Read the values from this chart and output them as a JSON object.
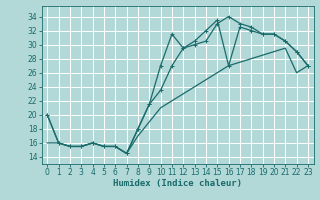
{
  "xlabel": "Humidex (Indice chaleur)",
  "bg_color": "#b2d8d8",
  "grid_color": "#ffffff",
  "line_color": "#1a6b6b",
  "xlim": [
    -0.5,
    23.5
  ],
  "ylim": [
    13.0,
    35.5
  ],
  "xticks": [
    0,
    1,
    2,
    3,
    4,
    5,
    6,
    7,
    8,
    9,
    10,
    11,
    12,
    13,
    14,
    15,
    16,
    17,
    18,
    19,
    20,
    21,
    22,
    23
  ],
  "yticks": [
    14,
    16,
    18,
    20,
    22,
    24,
    26,
    28,
    30,
    32,
    34
  ],
  "line1_x": [
    0,
    1,
    2,
    3,
    4,
    5,
    6,
    7,
    8,
    9,
    10,
    11,
    12,
    13,
    14,
    15,
    16,
    17,
    18,
    19,
    20,
    21,
    22,
    23
  ],
  "line1_y": [
    20,
    16,
    15.5,
    15.5,
    16,
    15.5,
    15.5,
    14.5,
    18,
    21.5,
    27,
    31.5,
    29.5,
    30,
    30.5,
    33,
    34,
    33,
    32.5,
    31.5,
    31.5,
    30.5,
    29,
    27
  ],
  "line2_x": [
    0,
    1,
    2,
    3,
    4,
    5,
    6,
    7,
    8,
    9,
    10,
    11,
    12,
    13,
    14,
    15,
    16,
    17,
    18,
    19,
    20,
    21,
    22,
    23
  ],
  "line2_y": [
    20,
    16,
    15.5,
    15.5,
    16,
    15.5,
    15.5,
    14.5,
    18,
    21.5,
    23.5,
    27,
    29.5,
    30.5,
    32,
    33.5,
    27,
    32.5,
    32,
    31.5,
    31.5,
    30.5,
    29,
    27
  ],
  "line3_x": [
    0,
    1,
    2,
    3,
    4,
    5,
    6,
    7,
    8,
    9,
    10,
    11,
    12,
    13,
    14,
    15,
    16,
    17,
    18,
    19,
    20,
    21,
    22,
    23
  ],
  "line3_y": [
    16,
    16,
    15.5,
    15.5,
    16,
    15.5,
    15.5,
    14.5,
    17,
    19,
    21,
    22,
    23,
    24,
    25,
    26,
    27,
    27.5,
    28,
    28.5,
    29,
    29.5,
    26,
    27
  ]
}
